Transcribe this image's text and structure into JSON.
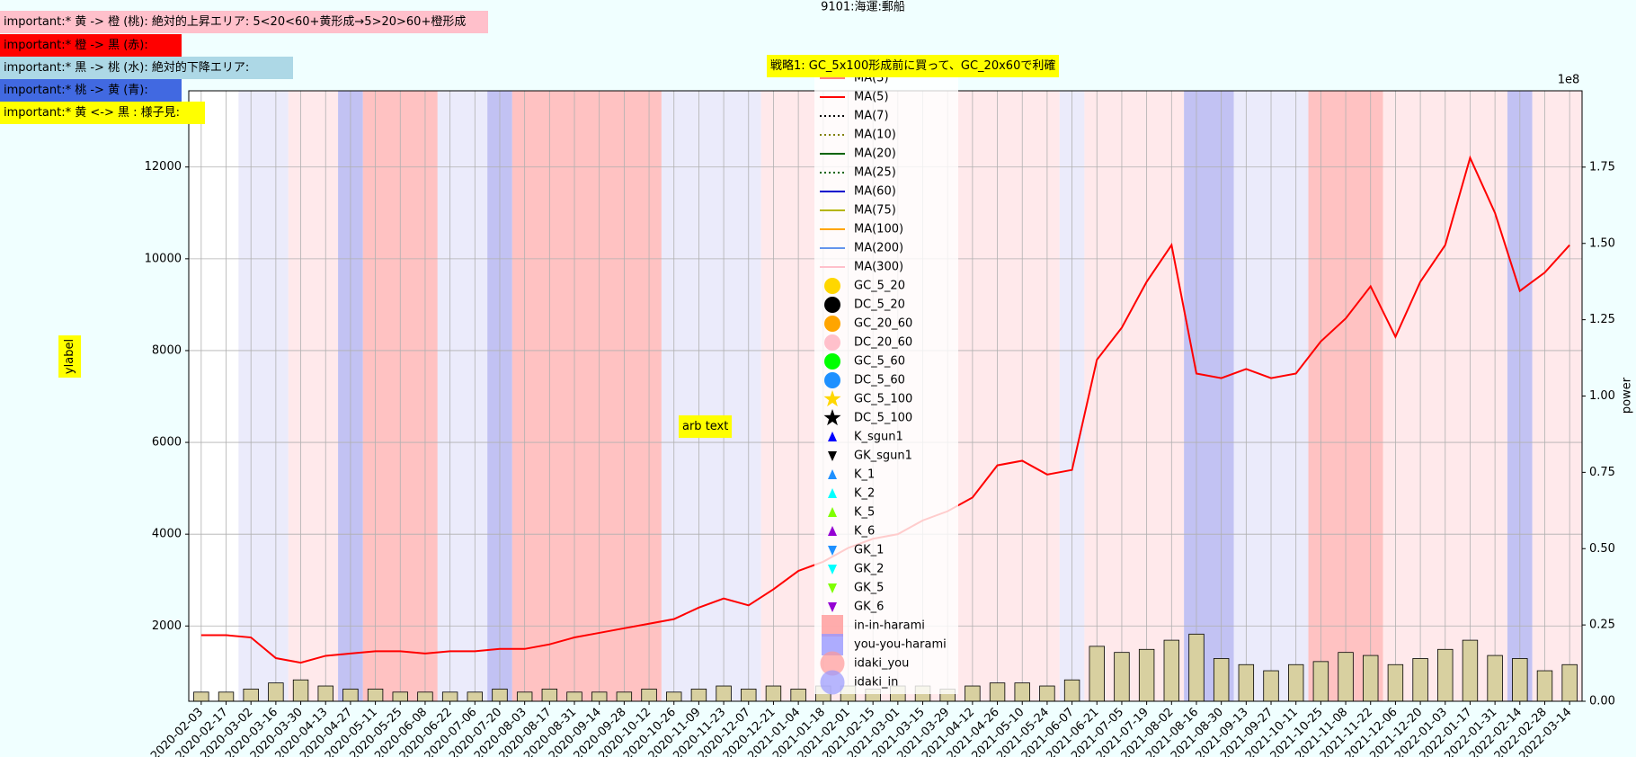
{
  "chart_data": {
    "type": "line",
    "title": "9101:海運:郵船",
    "ylabel": "ylabel",
    "y2label": "power",
    "y2offset": "1e8",
    "grid": true,
    "annotations": [
      {
        "text": "important:* 黄 -> 橙 (桃): 絶対的上昇エリア: 5<20<60+黄形成→5>20>60+橙形成",
        "color": "#ffc0cb"
      },
      {
        "text": "important:* 橙 -> 黒 (赤):",
        "color": "#ff0000"
      },
      {
        "text": "important:* 黒 -> 桃 (水): 絶対的下降エリア:",
        "color": "#add8e6"
      },
      {
        "text": "important:* 桃 -> 黄 (青):",
        "color": "#4169e1"
      },
      {
        "text": "important:* 黄 <-> 黒 : 様子見:",
        "color": "#ffff00"
      }
    ],
    "strategy": {
      "text": "戦略1: GC_5x100形成前に買って、GC_20x60で利確",
      "color": "#ffff00"
    },
    "note": {
      "text": "arb text",
      "color": "#ffff00"
    },
    "categories": [
      "2020-02-03",
      "2020-02-17",
      "2020-03-02",
      "2020-03-16",
      "2020-03-30",
      "2020-04-13",
      "2020-04-27",
      "2020-05-11",
      "2020-05-25",
      "2020-06-08",
      "2020-06-22",
      "2020-07-06",
      "2020-07-20",
      "2020-08-03",
      "2020-08-17",
      "2020-08-31",
      "2020-09-14",
      "2020-09-28",
      "2020-10-12",
      "2020-10-26",
      "2020-11-09",
      "2020-11-23",
      "2020-12-07",
      "2020-12-21",
      "2021-01-04",
      "2021-01-18",
      "2021-02-01",
      "2021-02-15",
      "2021-03-01",
      "2021-03-15",
      "2021-03-29",
      "2021-04-12",
      "2021-04-26",
      "2021-05-10",
      "2021-05-24",
      "2021-06-07",
      "2021-06-21",
      "2021-07-05",
      "2021-07-19",
      "2021-08-02",
      "2021-08-16",
      "2021-08-30",
      "2021-09-13",
      "2021-09-27",
      "2021-10-11",
      "2021-10-25",
      "2021-11-08",
      "2021-11-22",
      "2021-12-06",
      "2021-12-20",
      "2022-01-03",
      "2022-01-17",
      "2022-01-31",
      "2022-02-14",
      "2022-02-28",
      "2022-03-14"
    ],
    "ylim": [
      360,
      13660
    ],
    "yticks": [
      2000,
      4000,
      6000,
      8000,
      10000,
      12000
    ],
    "y2lim": [
      0,
      2
    ],
    "y2ticks": [
      {
        "value": 0,
        "label": "0.00"
      },
      0.25,
      {
        "value": 0.5,
        "label": "0.50"
      },
      0.75,
      {
        "value": 1,
        "label": "1.00"
      },
      1.25,
      {
        "value": 1.5,
        "label": "1.50"
      },
      1.75
    ],
    "bands": [
      {
        "start": "2020-03-02",
        "end": "2020-03-16",
        "color": "#e6e6fa"
      },
      {
        "start": "2020-03-30",
        "end": "2020-04-13",
        "color": "#ffe4e6"
      },
      {
        "start": "2020-04-27",
        "end": "2020-04-27",
        "color": "#b3b3f0"
      },
      {
        "start": "2020-05-11",
        "end": "2020-06-08",
        "color": "#ffb3b3"
      },
      {
        "start": "2020-06-22",
        "end": "2020-07-06",
        "color": "#e6e6fa"
      },
      {
        "start": "2020-07-20",
        "end": "2020-07-20",
        "color": "#b3b3f0"
      },
      {
        "start": "2020-08-03",
        "end": "2020-10-12",
        "color": "#ffb3b3"
      },
      {
        "start": "2020-10-26",
        "end": "2020-12-07",
        "color": "#e6e6fa"
      },
      {
        "start": "2020-12-21",
        "end": "2021-05-24",
        "color": "#ffe4e6"
      },
      {
        "start": "2021-06-07",
        "end": "2021-06-07",
        "color": "#e6e6fa"
      },
      {
        "start": "2021-06-21",
        "end": "2021-08-02",
        "color": "#ffe4e6"
      },
      {
        "start": "2021-08-16",
        "end": "2021-08-30",
        "color": "#b3b3f0"
      },
      {
        "start": "2021-09-13",
        "end": "2021-10-11",
        "color": "#e6e6fa"
      },
      {
        "start": "2021-10-25",
        "end": "2021-11-22",
        "color": "#ffb3b3"
      },
      {
        "start": "2021-12-06",
        "end": "2022-01-31",
        "color": "#ffe4e6"
      },
      {
        "start": "2022-02-14",
        "end": "2022-02-14",
        "color": "#b3b3f0"
      },
      {
        "start": "2022-02-28",
        "end": "2022-03-14",
        "color": "#ffe4e6"
      }
    ],
    "volume": {
      "axis": "y2",
      "color": "#d8d0a0",
      "values": [
        0.03,
        0.03,
        0.04,
        0.06,
        0.07,
        0.05,
        0.04,
        0.04,
        0.03,
        0.03,
        0.03,
        0.03,
        0.04,
        0.03,
        0.04,
        0.03,
        0.03,
        0.03,
        0.04,
        0.03,
        0.04,
        0.05,
        0.04,
        0.05,
        0.04,
        0.05,
        0.05,
        0.04,
        0.05,
        0.05,
        0.04,
        0.05,
        0.06,
        0.06,
        0.05,
        0.07,
        0.18,
        0.16,
        0.17,
        0.2,
        0.22,
        0.14,
        0.12,
        0.1,
        0.12,
        0.13,
        0.16,
        0.15,
        0.12,
        0.14,
        0.17,
        0.2,
        0.15,
        0.14,
        0.1,
        0.12
      ]
    },
    "series": [
      {
        "name": "MA(3)",
        "color": "#ff7f7f",
        "marker": "line"
      },
      {
        "name": "MA(5)",
        "color": "#ff0000",
        "marker": "line",
        "values": [
          1800,
          1800,
          1750,
          1300,
          1200,
          1350,
          1400,
          1450,
          1450,
          1400,
          1450,
          1450,
          1500,
          1500,
          1600,
          1750,
          1850,
          1950,
          2050,
          2150,
          2400,
          2600,
          2450,
          2800,
          3200,
          3400,
          3700,
          3900,
          4000,
          4300,
          4500,
          4800,
          5500,
          5600,
          5300,
          5400,
          7800,
          8500,
          9500,
          10300,
          7500,
          7400,
          7600,
          7400,
          7500,
          8200,
          8700,
          9400,
          8300,
          9500,
          10300,
          12200,
          11000,
          9300,
          9700,
          10300
        ]
      },
      {
        "name": "MA(7)",
        "color": "#000000",
        "marker": "dotted"
      },
      {
        "name": "MA(10)",
        "color": "#808000",
        "marker": "dotted"
      },
      {
        "name": "MA(20)",
        "color": "#006400",
        "marker": "line"
      },
      {
        "name": "MA(25)",
        "color": "#006400",
        "marker": "dotted"
      },
      {
        "name": "MA(60)",
        "color": "#0000cd",
        "marker": "line"
      },
      {
        "name": "MA(75)",
        "color": "#b5b500",
        "marker": "line"
      },
      {
        "name": "MA(100)",
        "color": "#ffa500",
        "marker": "line"
      },
      {
        "name": "MA(200)",
        "color": "#6495ed",
        "marker": "line"
      },
      {
        "name": "MA(300)",
        "color": "#ffc0cb",
        "marker": "line"
      },
      {
        "name": "GC_5_20",
        "color": "#ffd700",
        "marker": "circle"
      },
      {
        "name": "DC_5_20",
        "color": "#000000",
        "marker": "circle"
      },
      {
        "name": "GC_20_60",
        "color": "#ffa500",
        "marker": "circle"
      },
      {
        "name": "DC_20_60",
        "color": "#ffc0cb",
        "marker": "circle"
      },
      {
        "name": "GC_5_60",
        "color": "#00ff00",
        "marker": "circle"
      },
      {
        "name": "DC_5_60",
        "color": "#1e90ff",
        "marker": "circle"
      },
      {
        "name": "GC_5_100",
        "color": "#ffd700",
        "marker": "star"
      },
      {
        "name": "DC_5_100",
        "color": "#000000",
        "marker": "star"
      },
      {
        "name": "K_sgun1",
        "color": "#0000ff",
        "marker": "tri-up"
      },
      {
        "name": "GK_sgun1",
        "color": "#000000",
        "marker": "tri-down"
      },
      {
        "name": "K_1",
        "color": "#1e90ff",
        "marker": "tri-up"
      },
      {
        "name": "K_2",
        "color": "#00ffff",
        "marker": "tri-up"
      },
      {
        "name": "K_5",
        "color": "#7fff00",
        "marker": "tri-up"
      },
      {
        "name": "K_6",
        "color": "#9400d3",
        "marker": "tri-up"
      },
      {
        "name": "GK_1",
        "color": "#1e90ff",
        "marker": "tri-down"
      },
      {
        "name": "GK_2",
        "color": "#00ffff",
        "marker": "tri-down"
      },
      {
        "name": "GK_5",
        "color": "#7fff00",
        "marker": "tri-down"
      },
      {
        "name": "GK_6",
        "color": "#9400d3",
        "marker": "tri-down"
      },
      {
        "name": "in-in-harami",
        "color": "#ff9999",
        "marker": "square"
      },
      {
        "name": "you-you-harami",
        "color": "#9999ff",
        "marker": "square"
      },
      {
        "name": "idaki_you",
        "color": "#ff9999",
        "marker": "bigcircle"
      },
      {
        "name": "idaki_in",
        "color": "#9999ff",
        "marker": "bigcircle"
      }
    ]
  }
}
